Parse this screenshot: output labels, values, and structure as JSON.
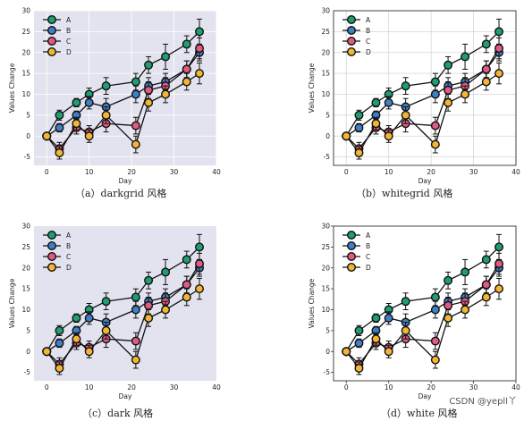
{
  "chart_data": [
    {
      "type": "line",
      "style": "darkgrid",
      "xlabel": "Day",
      "ylabel": "Values Change",
      "xlim": [
        -3,
        40
      ],
      "ylim": [
        -7,
        30
      ],
      "xticks": [
        0,
        10,
        20,
        30,
        40
      ],
      "yticks": [
        -5,
        0,
        5,
        10,
        15,
        20,
        25,
        30
      ],
      "grid": true,
      "background": "#e3e3ef",
      "legend_position": "upper-left",
      "caption": "（a）darkgrid 风格"
    },
    {
      "type": "line",
      "style": "whitegrid",
      "xlabel": "Day",
      "ylabel": "Values Change",
      "xlim": [
        -3,
        40
      ],
      "ylim": [
        -7,
        30
      ],
      "xticks": [
        0,
        10,
        20,
        30,
        40
      ],
      "yticks": [
        -5,
        0,
        5,
        10,
        15,
        20,
        25,
        30
      ],
      "grid": true,
      "background": "#ffffff",
      "legend_position": "upper-left",
      "caption": "（b）whitegrid 风格"
    },
    {
      "type": "line",
      "style": "dark",
      "xlabel": "Day",
      "ylabel": "Values Change",
      "xlim": [
        -3,
        40
      ],
      "ylim": [
        -7,
        30
      ],
      "xticks": [
        0,
        10,
        20,
        30,
        40
      ],
      "yticks": [
        -5,
        0,
        5,
        10,
        15,
        20,
        25,
        30
      ],
      "grid": false,
      "background": "#e3e3ef",
      "legend_position": "upper-left",
      "caption": "（c）dark 风格"
    },
    {
      "type": "line",
      "style": "white",
      "xlabel": "Day",
      "ylabel": "Values Change",
      "xlim": [
        -3,
        40
      ],
      "ylim": [
        -7,
        30
      ],
      "xticks": [
        0,
        10,
        20,
        30,
        40
      ],
      "yticks": [
        -5,
        0,
        5,
        10,
        15,
        20,
        25,
        30
      ],
      "grid": false,
      "background": "#ffffff",
      "legend_position": "upper-left",
      "caption": "（d）white 风格"
    }
  ],
  "series": [
    {
      "name": "A",
      "color": "#1f9e73",
      "x": [
        0,
        3,
        7,
        10,
        14,
        21,
        24,
        28,
        33,
        36
      ],
      "y": [
        0,
        5,
        8,
        10,
        12,
        13,
        17,
        19,
        22,
        25
      ],
      "err": [
        0,
        1.2,
        1.0,
        1.5,
        2.0,
        2.0,
        2.0,
        3.0,
        2.0,
        3.0
      ]
    },
    {
      "name": "B",
      "color": "#3f7fc5",
      "x": [
        0,
        3,
        7,
        10,
        14,
        21,
        24,
        28,
        33,
        36
      ],
      "y": [
        0,
        2,
        5,
        8,
        7,
        10,
        12,
        13,
        16,
        20
      ],
      "err": [
        0,
        1.0,
        1.0,
        1.5,
        2.0,
        2.0,
        2.0,
        2.0,
        2.0,
        2.0
      ]
    },
    {
      "name": "C",
      "color": "#e05a84",
      "x": [
        0,
        3,
        7,
        10,
        14,
        21,
        24,
        28,
        33,
        36
      ],
      "y": [
        0,
        -3,
        2,
        1,
        3,
        2.5,
        11,
        12,
        16,
        21
      ],
      "err": [
        0,
        1.5,
        1.5,
        1.5,
        2.0,
        2.0,
        2.0,
        2.0,
        2.0,
        2.5
      ]
    },
    {
      "name": "D",
      "color": "#f2b535",
      "x": [
        0,
        3,
        7,
        10,
        14,
        21,
        24,
        28,
        33,
        36
      ],
      "y": [
        0,
        -4,
        3,
        0,
        5,
        -2,
        8,
        10,
        13,
        15
      ],
      "err": [
        0,
        1.5,
        1.5,
        1.5,
        2.0,
        2.0,
        2.0,
        2.0,
        2.0,
        2.5
      ]
    }
  ],
  "watermark": "CSDN @yepll丫"
}
